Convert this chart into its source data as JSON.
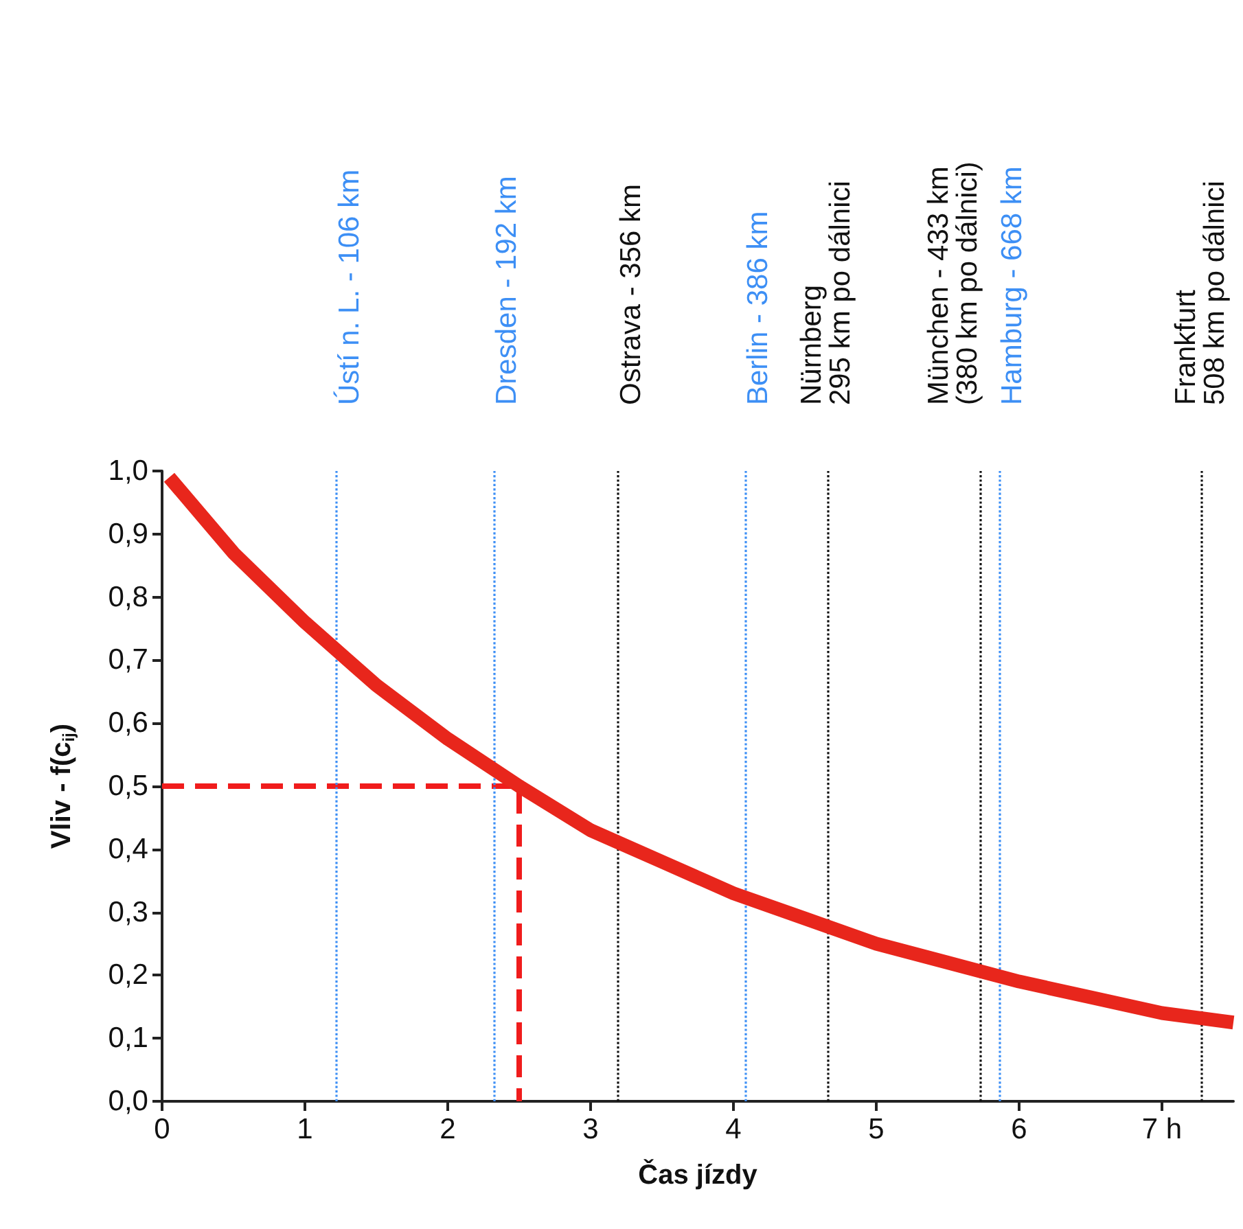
{
  "chart_data": {
    "type": "line",
    "xlabel": "Čas jízdy",
    "ylabel": "Vliv - f(c$_{ij}$)",
    "xlim": [
      0,
      7.5
    ],
    "xticks": [
      0,
      1,
      2,
      3,
      4,
      5,
      6,
      {
        "value": 7,
        "label": "7 h"
      }
    ],
    "ylim": [
      0,
      1
    ],
    "yticks": [
      {
        "value": 0,
        "label": "0,0"
      },
      {
        "value": 0.1,
        "label": "0,1"
      },
      {
        "value": 0.2,
        "label": "0,2"
      },
      {
        "value": 0.3,
        "label": "0,3"
      },
      {
        "value": 0.4,
        "label": "0,4"
      },
      {
        "value": 0.5,
        "label": "0,5"
      },
      {
        "value": 0.6,
        "label": "0,6"
      },
      {
        "value": 0.7,
        "label": "0,7"
      },
      {
        "value": 0.8,
        "label": "0,8"
      },
      {
        "value": 0.9,
        "label": "0,9"
      },
      {
        "value": 1,
        "label": "1,0"
      }
    ],
    "marker": "none",
    "series": [
      {
        "color": "#e8261c",
        "line_style": "solid",
        "x": [
          0.05,
          0.5,
          1,
          1.5,
          2,
          2.5,
          3,
          3.5,
          4,
          4.5,
          5,
          5.5,
          6,
          6.5,
          7,
          7.5
        ],
        "values": [
          0.99,
          0.87,
          0.76,
          0.66,
          0.575,
          0.5,
          0.43,
          0.38,
          0.33,
          0.29,
          0.25,
          0.22,
          0.19,
          0.165,
          0.14,
          0.125
        ]
      },
      {
        "color": "#f01c1c",
        "line_style": "dashed",
        "x": [
          0,
          2.5,
          2.5
        ],
        "values": [
          0.5,
          0.5,
          0
        ]
      }
    ],
    "ref_lines": [
      {
        "axis": "x",
        "value": 1.22,
        "label": "Ústí n. L. - 106 km",
        "color": "#3d8ff5",
        "line_style": "dotted"
      },
      {
        "axis": "x",
        "value": 2.32,
        "label": "Dresden - 192 km",
        "color": "#3d8ff5",
        "line_style": "dotted"
      },
      {
        "axis": "x",
        "value": 3.19,
        "label": "Ostrava - 356 km",
        "color": "#111111",
        "line_style": "dotted"
      },
      {
        "axis": "x",
        "value": 4.08,
        "label": "Berlin - 386 km",
        "color": "#3d8ff5",
        "line_style": "dotted"
      },
      {
        "axis": "x",
        "value": 4.66,
        "label": "Nürnberg\n295 km po dálnici",
        "color": "#111111",
        "line_style": "dotted"
      },
      {
        "axis": "x",
        "value": 5.73,
        "label": "München - 433 km\n(380 km po dálnici)",
        "color": "#111111",
        "line_style": "dotted"
      },
      {
        "axis": "x",
        "value": 5.86,
        "label": "Hamburg - 668 km",
        "color": "#3d8ff5",
        "line_style": "dotted"
      },
      {
        "axis": "x",
        "value": 7.28,
        "label": "Frankfurt\n508 km po dálnici",
        "color": "#111111",
        "line_style": "dotted"
      }
    ]
  }
}
